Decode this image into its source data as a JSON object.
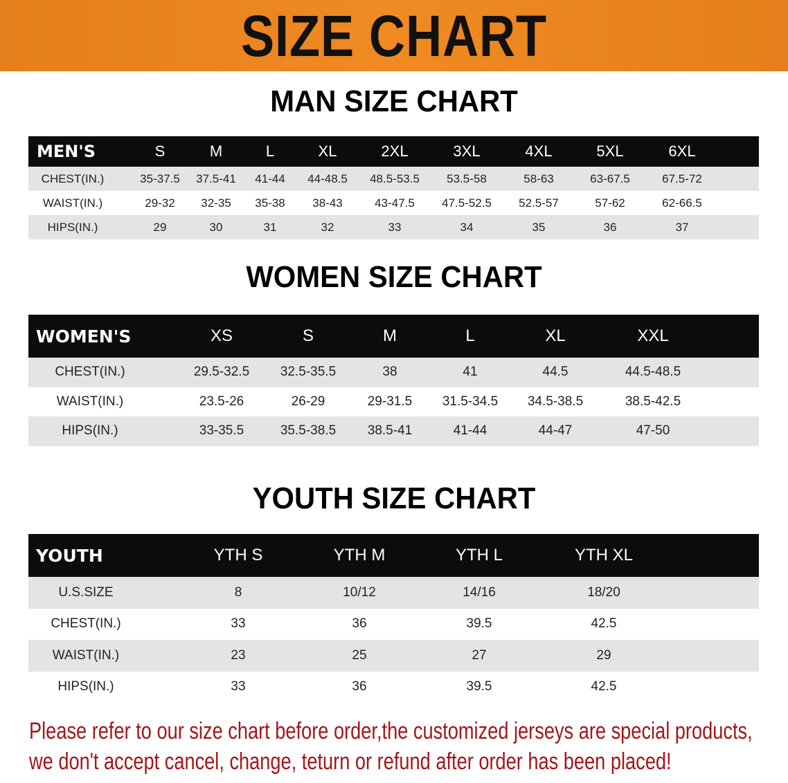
{
  "banner": {
    "title": "SIZE CHART",
    "color": "#ec841f"
  },
  "men": {
    "title": "MAN SIZE CHART",
    "header": [
      "MEN'S",
      "S",
      "M",
      "L",
      "XL",
      "2XL",
      "3XL",
      "4XL",
      "5XL",
      "6XL"
    ],
    "rows": [
      [
        "CHEST(IN.)",
        "35-37.5",
        "37.5-41",
        "41-44",
        "44-48.5",
        "48.5-53.5",
        "53.5-58",
        "58-63",
        "63-67.5",
        "67.5-72"
      ],
      [
        "WAIST(IN.)",
        "29-32",
        "32-35",
        "35-38",
        "38-43",
        "43-47.5",
        "47.5-52.5",
        "52.5-57",
        "57-62",
        "62-66.5"
      ],
      [
        "HIPS(IN.)",
        "29",
        "30",
        "31",
        "32",
        "33",
        "34",
        "35",
        "36",
        "37"
      ]
    ]
  },
  "women": {
    "title": "WOMEN SIZE CHART",
    "header": [
      "WOMEN'S",
      "XS",
      "S",
      "M",
      "L",
      "XL",
      "XXL"
    ],
    "rows": [
      [
        "CHEST(IN.)",
        "29.5-32.5",
        "32.5-35.5",
        "38",
        "41",
        "44.5",
        "44.5-48.5"
      ],
      [
        "WAIST(IN.)",
        "23.5-26",
        "26-29",
        "29-31.5",
        "31.5-34.5",
        "34.5-38.5",
        "38.5-42.5"
      ],
      [
        "HIPS(IN.)",
        "33-35.5",
        "35.5-38.5",
        "38.5-41",
        "41-44",
        "44-47",
        "47-50"
      ]
    ]
  },
  "youth": {
    "title": "YOUTH SIZE CHART",
    "header": [
      "YOUTH",
      "YTH S",
      "YTH M",
      "YTH L",
      "YTH XL"
    ],
    "rows": [
      [
        "U.S.SIZE",
        "8",
        "10/12",
        "14/16",
        "18/20"
      ],
      [
        "CHEST(IN.)",
        "33",
        "36",
        "39.5",
        "42.5"
      ],
      [
        "WAIST(IN.)",
        "23",
        "25",
        "27",
        "29"
      ],
      [
        "HIPS(IN.)",
        "33",
        "36",
        "39.5",
        "42.5"
      ]
    ]
  },
  "note": {
    "line1": "Please refer to our size chart before order,the customized jerseys are special products,",
    "line2": "we don't accept cancel, change, teturn or refund after order has been placed!",
    "color": "#a3161a"
  }
}
